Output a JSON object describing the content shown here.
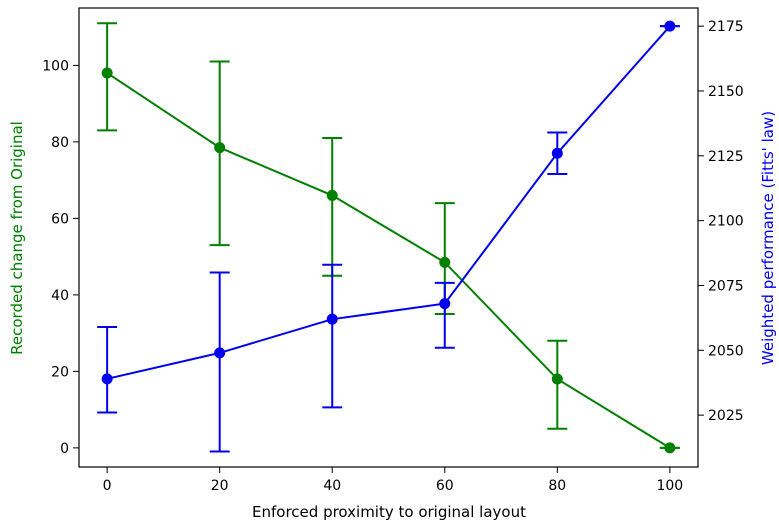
{
  "chart_data": {
    "type": "line",
    "xlabel": "Enforced proximity to original layout",
    "x": [
      0,
      20,
      40,
      60,
      80,
      100
    ],
    "xticks": [
      "0",
      "20",
      "40",
      "60",
      "80",
      "100"
    ],
    "xlim": [
      -5,
      105
    ],
    "grid": false,
    "left_axis": {
      "label": "Recorded change from Original",
      "color": "#008000",
      "ylim": [
        -5,
        115
      ],
      "ticks": [
        0,
        20,
        40,
        60,
        80,
        100
      ],
      "tick_labels": [
        "0",
        "20",
        "40",
        "60",
        "80",
        "100"
      ]
    },
    "right_axis": {
      "label": "Weighted performance (Fitts' law)",
      "color": "#0000ee",
      "ylim": [
        2005,
        2182
      ],
      "ticks": [
        2025,
        2050,
        2075,
        2100,
        2125,
        2150,
        2175
      ],
      "tick_labels": [
        "2025",
        "2050",
        "2075",
        "2100",
        "2125",
        "2150",
        "2175"
      ]
    },
    "series": [
      {
        "axis": "left",
        "color": "#008000",
        "values": [
          98,
          78.5,
          66,
          48.5,
          18,
          0
        ],
        "err_low": [
          83,
          53,
          45,
          35,
          5,
          0
        ],
        "err_high": [
          111,
          101,
          81,
          64,
          28,
          0
        ]
      },
      {
        "axis": "right",
        "color": "#0000ee",
        "values": [
          2039,
          2049,
          2062,
          2068,
          2126,
          2175
        ],
        "err_low": [
          2026,
          2011,
          2028,
          2051,
          2118,
          2175
        ],
        "err_high": [
          2059,
          2080,
          2083,
          2076,
          2134,
          2175
        ]
      }
    ]
  }
}
